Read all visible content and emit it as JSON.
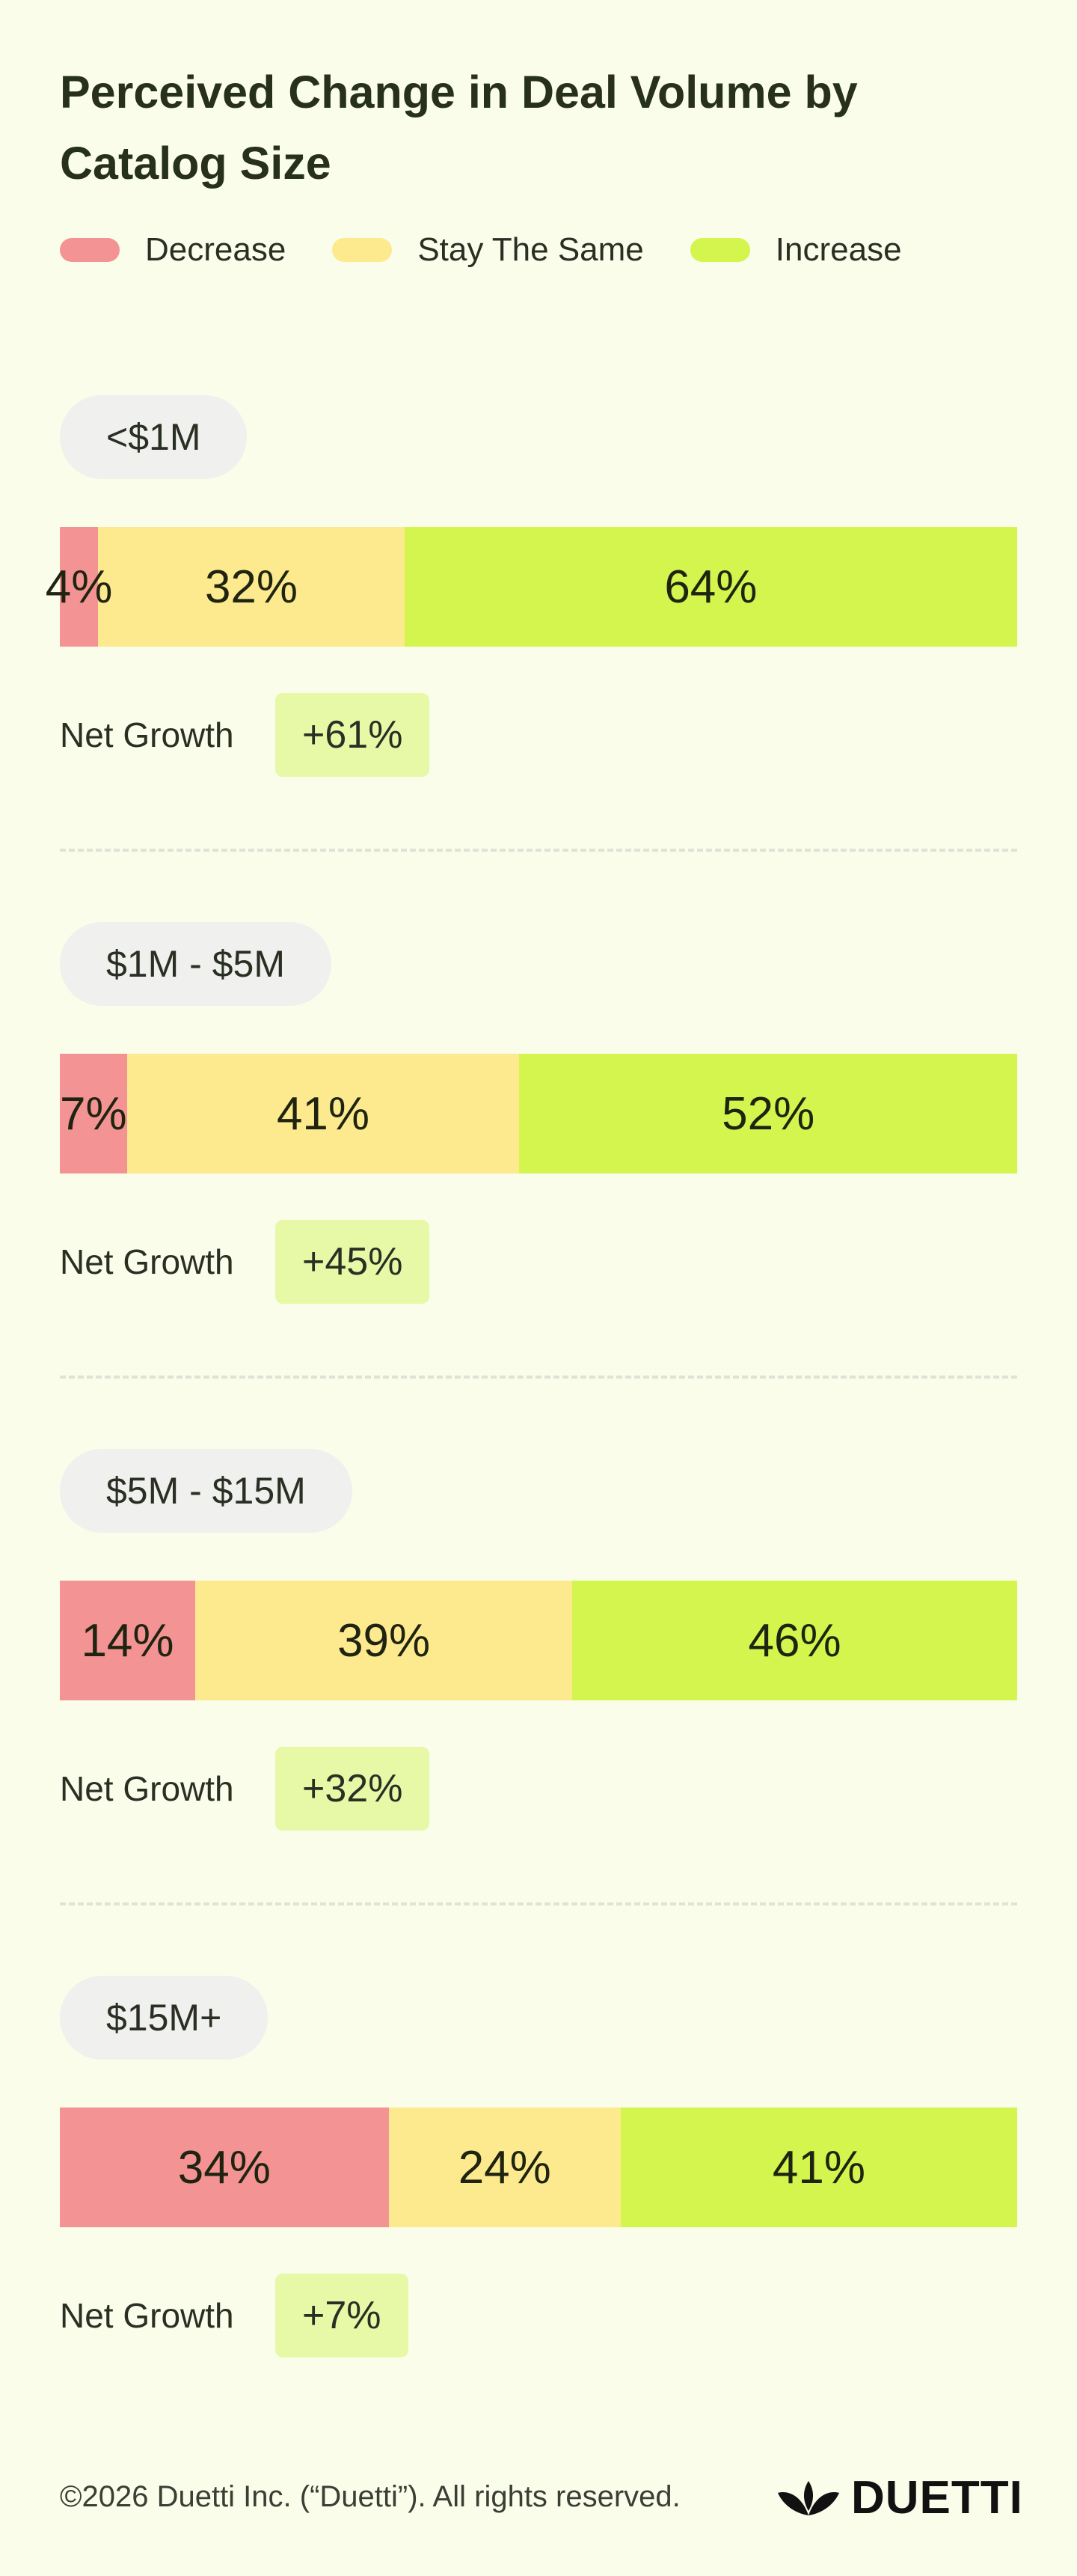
{
  "chart_data": {
    "type": "bar",
    "orientation": "horizontal",
    "stacked": true,
    "normalized": true,
    "title": "Perceived Change in Deal Volume by Catalog Size",
    "legend": [
      {
        "label": "Decrease",
        "color": "#f39393"
      },
      {
        "label": "Stay The Same",
        "color": "#fde98e"
      },
      {
        "label": "Increase",
        "color": "#d4f44e"
      }
    ],
    "legend_position": "top-left",
    "net_label": "Net Growth",
    "categories": [
      "<$1M",
      "$1M - $5M",
      "$5M - $15M",
      "$15M+"
    ],
    "series": [
      {
        "name": "Decrease",
        "values": [
          4,
          7,
          14,
          34
        ],
        "labels": [
          "4%",
          "7%",
          "14%",
          "34%"
        ]
      },
      {
        "name": "Stay The Same",
        "values": [
          32,
          41,
          39,
          24
        ],
        "labels": [
          "32%",
          "41%",
          "39%",
          "24%"
        ]
      },
      {
        "name": "Increase",
        "values": [
          64,
          52,
          46,
          41
        ],
        "labels": [
          "64%",
          "52%",
          "46%",
          "41%"
        ]
      }
    ],
    "net_growth": [
      "+61%",
      "+45%",
      "+32%",
      "+7%"
    ]
  },
  "footer": {
    "copyright": "©2026 Duetti Inc. (“Duetti”). All rights reserved.",
    "brand": "DUETTI"
  }
}
